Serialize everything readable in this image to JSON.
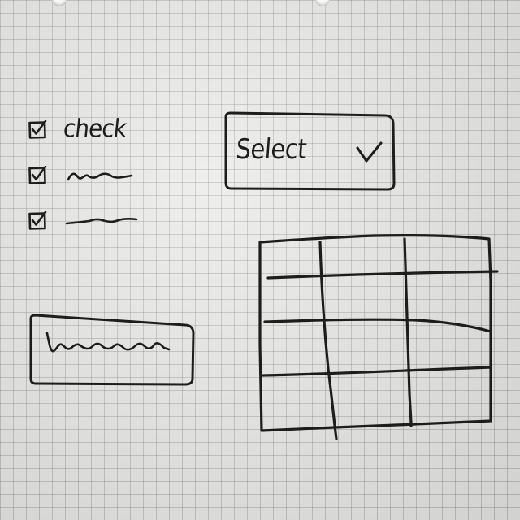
{
  "checklist": {
    "items": [
      {
        "label": "check",
        "checked": true
      },
      {
        "label": "",
        "checked": true
      },
      {
        "label": "",
        "checked": true
      }
    ]
  },
  "select": {
    "label": "Select",
    "icon": "chevron-down-icon"
  },
  "text_field": {
    "value": ""
  },
  "table": {
    "rows": 4,
    "columns": 3,
    "cells": []
  },
  "colors": {
    "ink": "#1d1d1d",
    "paper": "#e9e9e7",
    "grid": "#8a8a8a"
  }
}
